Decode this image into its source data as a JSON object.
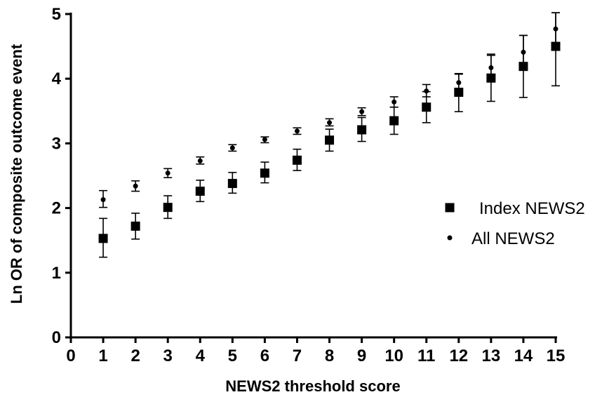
{
  "chart_data": {
    "type": "scatter",
    "xlabel": "NEWS2 threshold score",
    "ylabel": "Ln OR of composite outcome event",
    "xlim": [
      0,
      15
    ],
    "ylim": [
      0,
      5
    ],
    "xticks": [
      "0",
      "1",
      "2",
      "3",
      "4",
      "5",
      "6",
      "7",
      "8",
      "9",
      "10",
      "11",
      "12",
      "13",
      "14",
      "15"
    ],
    "yticks": [
      "0",
      "1",
      "2",
      "3",
      "4",
      "5"
    ],
    "grid": false,
    "legend_position": "right",
    "series": [
      {
        "name": "Index NEWS2",
        "marker": "square",
        "color": "#000000",
        "x": [
          1,
          2,
          3,
          4,
          5,
          6,
          7,
          8,
          9,
          10,
          11,
          12,
          13,
          14,
          15
        ],
        "y": [
          1.53,
          1.72,
          2.01,
          2.26,
          2.38,
          2.54,
          2.74,
          3.05,
          3.21,
          3.35,
          3.56,
          3.79,
          4.01,
          4.19,
          4.5
        ],
        "lower": [
          1.24,
          1.52,
          1.84,
          2.1,
          2.23,
          2.39,
          2.58,
          2.88,
          3.03,
          3.14,
          3.32,
          3.49,
          3.65,
          3.71,
          3.89
        ],
        "upper": [
          1.84,
          1.92,
          2.19,
          2.43,
          2.55,
          2.71,
          2.91,
          3.22,
          3.4,
          3.56,
          3.8,
          4.08,
          4.38,
          4.67,
          5.02
        ]
      },
      {
        "name": "All NEWS2",
        "marker": "circle",
        "color": "#000000",
        "x": [
          1,
          2,
          3,
          4,
          5,
          6,
          7,
          8,
          9,
          10,
          11,
          12,
          13,
          14,
          15
        ],
        "y": [
          2.13,
          2.34,
          2.54,
          2.73,
          2.93,
          3.06,
          3.19,
          3.32,
          3.49,
          3.64,
          3.81,
          3.94,
          4.17,
          4.41,
          4.77
        ],
        "lower": [
          2.01,
          2.26,
          2.47,
          2.68,
          2.88,
          3.01,
          3.14,
          3.27,
          3.43,
          3.56,
          3.72,
          3.8,
          3.98,
          4.15,
          4.5
        ],
        "upper": [
          2.27,
          2.42,
          2.61,
          2.79,
          2.98,
          3.1,
          3.24,
          3.38,
          3.55,
          3.72,
          3.91,
          4.07,
          4.36,
          4.67,
          5.02
        ]
      }
    ]
  }
}
